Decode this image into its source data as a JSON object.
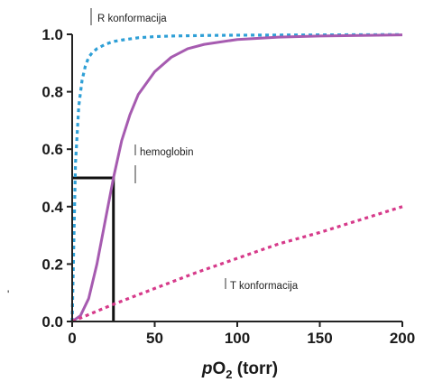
{
  "chart_data": {
    "type": "line",
    "title": "",
    "xlabel": "pO2 (torr)",
    "xlabel_parts": {
      "italic": "p",
      "base": "O",
      "sub": "2",
      "rest": " (torr)"
    },
    "ylabel": "",
    "y_axis_stray_mark": "'",
    "xlim": [
      0,
      200
    ],
    "ylim": [
      0,
      1.0
    ],
    "x_ticks": [
      "0",
      "50",
      "100",
      "150",
      "200"
    ],
    "y_ticks": [
      "0.0",
      "0.2",
      "0.4",
      "0.6",
      "0.8",
      "1.0"
    ],
    "grid": false,
    "series": [
      {
        "name": "R konformacija",
        "color": "#2e9fd6",
        "style": "dotted",
        "x": [
          0,
          2,
          4,
          6,
          8,
          10,
          12,
          15,
          20,
          25,
          30,
          40,
          50,
          60,
          80,
          100,
          150,
          200
        ],
        "y": [
          0.0,
          0.55,
          0.75,
          0.84,
          0.89,
          0.92,
          0.935,
          0.95,
          0.965,
          0.975,
          0.98,
          0.988,
          0.992,
          0.994,
          0.996,
          0.997,
          0.998,
          0.999
        ]
      },
      {
        "name": "hemoglobin",
        "color": "#a65bb0",
        "style": "solid",
        "x": [
          0,
          5,
          10,
          15,
          20,
          25,
          30,
          35,
          40,
          50,
          60,
          70,
          80,
          100,
          125,
          150,
          175,
          200
        ],
        "y": [
          0.0,
          0.02,
          0.08,
          0.2,
          0.35,
          0.5,
          0.63,
          0.72,
          0.79,
          0.87,
          0.92,
          0.95,
          0.965,
          0.982,
          0.99,
          0.994,
          0.996,
          0.998
        ]
      },
      {
        "name": "T konformacija",
        "color": "#d63a8a",
        "style": "dotted",
        "x": [
          0,
          25,
          50,
          75,
          100,
          125,
          150,
          175,
          200
        ],
        "y": [
          0.0,
          0.06,
          0.115,
          0.17,
          0.22,
          0.27,
          0.31,
          0.355,
          0.4
        ]
      }
    ],
    "p50_marker": {
      "x": 25,
      "y": 0.5,
      "color": "#111111"
    },
    "annotations": [
      {
        "text": "R konformacija",
        "series": "R konformacija"
      },
      {
        "text": "hemoglobin",
        "series": "hemoglobin"
      },
      {
        "text": "T konformacija",
        "series": "T konformacija"
      }
    ]
  }
}
